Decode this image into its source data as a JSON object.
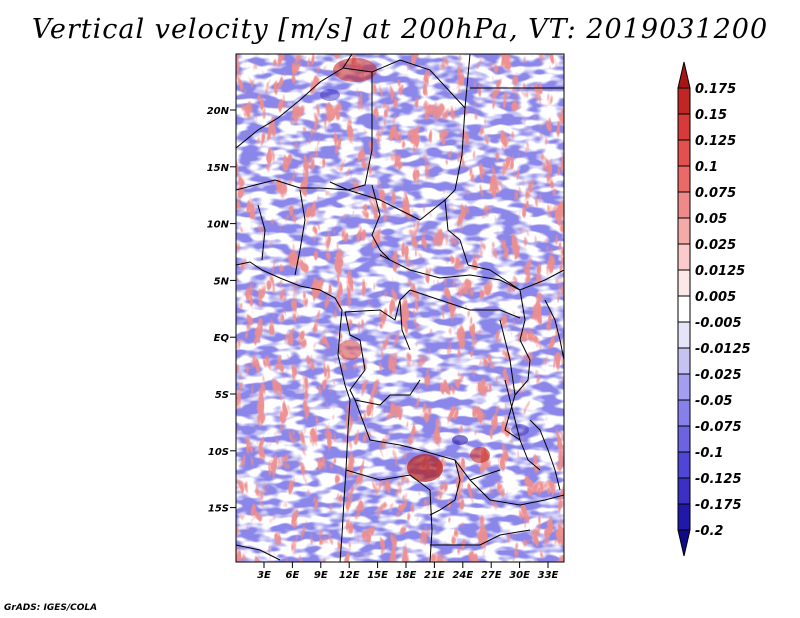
{
  "title": "Vertical velocity [m/s] at 200hPa, VT: 2019031200",
  "credit": "GrADS: IGES/COLA",
  "map": {
    "lat_ticks": [
      "20N",
      "15N",
      "10N",
      "5N",
      "EQ",
      "5S",
      "10S",
      "15S"
    ],
    "lon_ticks": [
      "3E",
      "6E",
      "9E",
      "12E",
      "15E",
      "18E",
      "21E",
      "24E",
      "27E",
      "30E",
      "33E"
    ]
  },
  "colorbar": {
    "levels": [
      "0.175",
      "0.15",
      "0.125",
      "0.1",
      "0.075",
      "0.05",
      "0.025",
      "0.0125",
      "0.005",
      "-0.005",
      "-0.0125",
      "-0.025",
      "-0.05",
      "-0.075",
      "-0.1",
      "-0.125",
      "-0.175",
      "-0.2"
    ],
    "colors": [
      "#a81414",
      "#c02626",
      "#d63a3a",
      "#e25050",
      "#ea6a6a",
      "#f08a8a",
      "#f5aaaa",
      "#fbcaca",
      "#fde8e8",
      "#ffffff",
      "#e6e4f8",
      "#c6c2f2",
      "#a49ef0",
      "#8680ea",
      "#6a64e0",
      "#4e46d4",
      "#3a30c4",
      "#2018a8",
      "#12088a"
    ]
  },
  "colors": {
    "warm": "#ee8e8e",
    "cool": "#8a86ea",
    "neutral": "#ffffff",
    "border": "#000000"
  }
}
